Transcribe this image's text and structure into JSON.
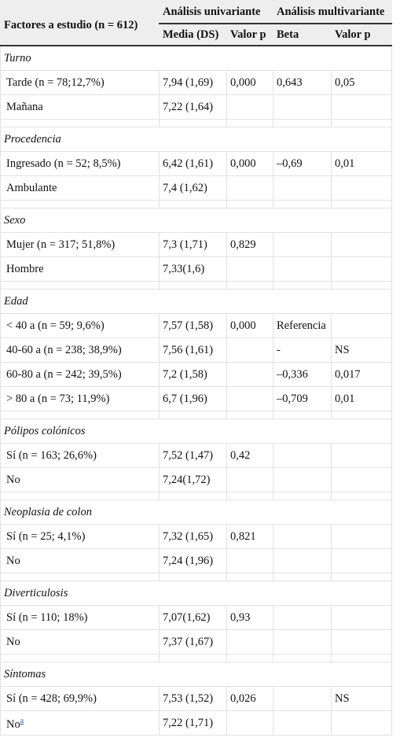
{
  "table": {
    "header": {
      "factor": "Factores a estudio (n = 612)",
      "univariate": "Análisis univariante",
      "multivariate": "Análisis multivariante",
      "columns": [
        "Media (DS)",
        "Valor p",
        "Beta",
        "Valor p"
      ]
    },
    "sections": [
      {
        "title": "Turno",
        "rows": [
          [
            "Tarde (n = 78;12,7%)",
            "7,94 (1,69)",
            "0,000",
            "0,643",
            "0,05"
          ],
          [
            "Mañana",
            "7,22 (1,64)",
            null,
            null,
            null
          ]
        ]
      },
      {
        "title": "Procedencia",
        "rows": [
          [
            "Ingresado (n = 52; 8,5%)",
            "6,42 (1,61)",
            "0,000",
            "–0,69",
            "0,01"
          ],
          [
            "Ambulante",
            "7,4 (1,62)",
            null,
            null,
            null
          ]
        ]
      },
      {
        "title": "Sexo",
        "rows": [
          [
            "Mujer (n = 317; 51,8%)",
            "7,3 (1,71)",
            "0,829",
            null,
            null
          ],
          [
            "Hombre",
            "7,33(1,6)",
            null,
            null,
            null
          ]
        ]
      },
      {
        "title": "Edad",
        "rows": [
          [
            "< 40 a (n = 59; 9,6%)",
            "7,57 (1,58)",
            "0,000",
            "Referencia",
            null
          ],
          [
            "40-60 a (n = 238; 38,9%)",
            "7,56 (1,61)",
            null,
            "-",
            "NS"
          ],
          [
            "60-80 a (n = 242; 39,5%)",
            "7,2 (1,58)",
            null,
            "–0,336",
            "0,017"
          ],
          [
            "> 80 a (n = 73; 11,9%)",
            "6,7 (1,96)",
            null,
            "–0,709",
            "0,01"
          ]
        ]
      },
      {
        "title": "Pólipos colónicos",
        "rows": [
          [
            "Sí (n = 163; 26,6%)",
            "7,52 (1,47)",
            "0,42",
            null,
            null
          ],
          [
            "No",
            "7,24(1,72)",
            null,
            null,
            null
          ]
        ]
      },
      {
        "title": "Neoplasia de colon",
        "rows": [
          [
            "Sí (n = 25; 4,1%)",
            "7,32 (1,65)",
            "0,821",
            null,
            null
          ],
          [
            "No",
            "7,24 (1,96)",
            null,
            null,
            null
          ]
        ]
      },
      {
        "title": "Diverticulosis",
        "rows": [
          [
            "Sí (n = 110; 18%)",
            "7,07(1,62)",
            "0,93",
            null,
            null
          ],
          [
            "No",
            "7,37 (1,67)",
            null,
            null,
            null
          ]
        ]
      },
      {
        "title": "Síntomas",
        "rows": [
          [
            "Sí (n = 428; 69,9%)",
            "7,53 (1,52)",
            "0,026",
            null,
            "NS"
          ],
          [
            {
              "text": "No",
              "note": "a"
            },
            "7,22 (1,71)",
            null,
            null,
            null
          ]
        ]
      }
    ]
  }
}
